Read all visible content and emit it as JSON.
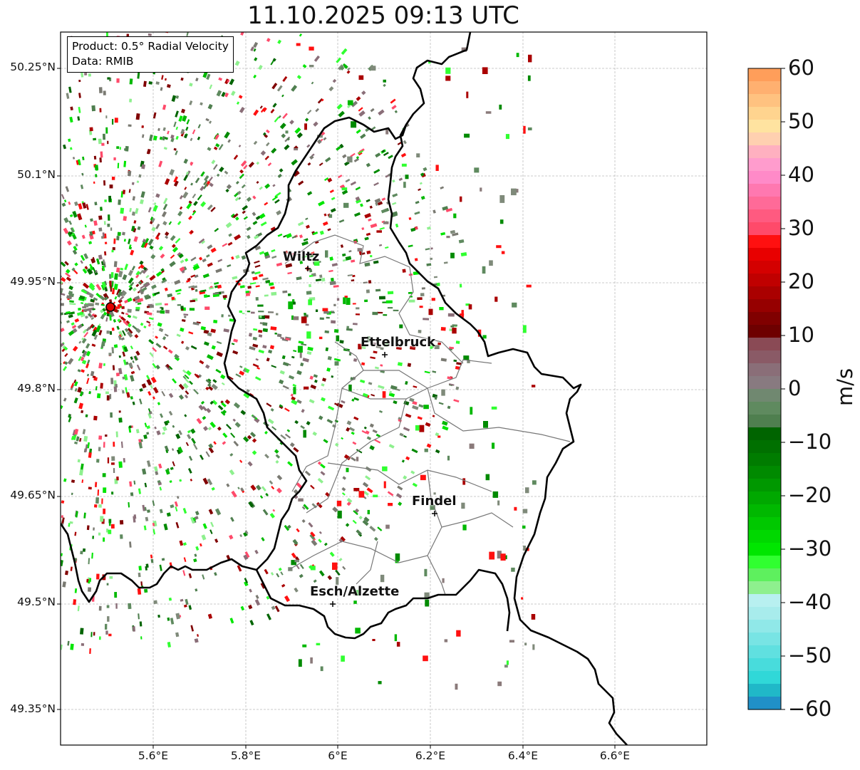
{
  "title": "11.10.2025 09:13 UTC",
  "info_box": {
    "product": "Product: 0.5° Radial Velocity",
    "data": "Data: RMIB"
  },
  "lat_ticks": [
    "50.25°N",
    "50.1°N",
    "49.95°N",
    "49.8°N",
    "49.65°N",
    "49.5°N",
    "49.35°N"
  ],
  "lon_ticks": [
    "5.6°E",
    "5.8°E",
    "6°E",
    "6.2°E",
    "6.4°E",
    "6.6°E"
  ],
  "cities": [
    {
      "name": "Wiltz"
    },
    {
      "name": "Ettelbruck"
    },
    {
      "name": "Findel"
    },
    {
      "name": "Esch/Alzette"
    }
  ],
  "colorbar": {
    "unit": "m/s",
    "ticks": [
      "60",
      "50",
      "40",
      "30",
      "20",
      "10",
      "0",
      "−10",
      "−20",
      "−30",
      "−40",
      "−50",
      "−60"
    ],
    "min": -60,
    "max": 60,
    "colors_top_to_bottom": [
      "#ff9e5a",
      "#ffb070",
      "#ffc280",
      "#ffd48f",
      "#ffe3a0",
      "#ffd0b0",
      "#ffb0c0",
      "#ff9ccd",
      "#ff8ac8",
      "#ff78b0",
      "#ff6a98",
      "#ff5a80",
      "#ff4a6a",
      "#ff1010",
      "#e80000",
      "#d40000",
      "#c00000",
      "#aa0000",
      "#960000",
      "#800000",
      "#6e0000",
      "#8a4a55",
      "#8a5a66",
      "#8a6e78",
      "#887a80",
      "#708870",
      "#5f8a5f",
      "#4f7f4f",
      "#006400",
      "#007000",
      "#007c00",
      "#008a00",
      "#009800",
      "#00a800",
      "#00b800",
      "#00c800",
      "#00d800",
      "#00e600",
      "#30ff30",
      "#5ef05e",
      "#8ef08e",
      "#b8f0f0",
      "#a8ecec",
      "#90e8e8",
      "#78e4e4",
      "#60e0e0",
      "#48dcdc",
      "#30d8d8",
      "#20b8c8",
      "#2090c8"
    ]
  },
  "radar_site": {
    "lon": 5.505,
    "lat": 49.914
  }
}
